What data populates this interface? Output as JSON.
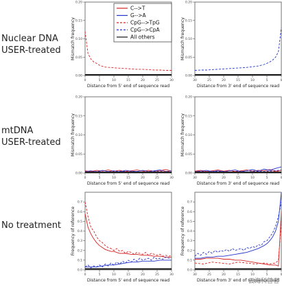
{
  "row_labels": [
    [
      "Nuclear DNA",
      "USER-treated"
    ],
    [
      "mtDNA",
      "USER-treated"
    ],
    [
      "No treatment"
    ]
  ],
  "watermark": "云海科普者",
  "legend": {
    "placement": "inside top of panel 1",
    "entries": [
      {
        "label": "C-->T",
        "color": "#d62020",
        "dash": "solid"
      },
      {
        "label": "G-->A",
        "color": "#2233cc",
        "dash": "solid"
      },
      {
        "label": "CpG-->TpG",
        "color": "#d62020",
        "dash": "dashed"
      },
      {
        "label": "CpG-->CpA",
        "color": "#2233cc",
        "dash": "dashed"
      },
      {
        "label": "All others",
        "color": "#111111",
        "dash": "solid"
      }
    ]
  },
  "chart_data": [
    {
      "type": "line",
      "xlabel": "Distance from 5' end of sequence read",
      "ylabel": "Mismatch frequency",
      "xlim": [
        0,
        30
      ],
      "ylim": [
        0,
        2.0
      ],
      "xticks": [
        0,
        5,
        10,
        15,
        20,
        25,
        30
      ],
      "yticks": [
        0.0,
        0.5,
        1.0,
        1.5,
        2.0
      ],
      "ytick_labels": [
        "0.00",
        "0.05",
        "0.10",
        "0.15",
        "0.20"
      ],
      "series": [
        {
          "key": "ct",
          "x": [
            0,
            30
          ],
          "y": [
            0.02,
            0.02
          ]
        },
        {
          "key": "ga",
          "x": [
            0,
            30
          ],
          "y": [
            0.02,
            0.02
          ]
        },
        {
          "key": "cpg_tpg",
          "x": [
            0,
            1,
            2,
            3,
            4,
            5,
            6,
            7,
            8,
            9,
            10,
            12,
            14,
            16,
            18,
            20,
            22,
            24,
            26,
            28,
            30
          ],
          "y": [
            1.2,
            0.6,
            0.45,
            0.37,
            0.33,
            0.28,
            0.25,
            0.23,
            0.22,
            0.22,
            0.21,
            0.2,
            0.19,
            0.18,
            0.17,
            0.17,
            0.16,
            0.15,
            0.15,
            0.14,
            0.14
          ]
        },
        {
          "key": "cpg_cpa",
          "x": [
            0,
            30
          ],
          "y": [
            0.02,
            0.02
          ]
        },
        {
          "key": "others",
          "x": [
            0,
            30
          ],
          "y": [
            0.02,
            0.02
          ]
        }
      ]
    },
    {
      "type": "line",
      "xlabel": "Distance from 3' end of sequence read",
      "ylabel": "Mismatch frequency",
      "xlim": [
        30,
        0
      ],
      "ylim": [
        0,
        2.0
      ],
      "xticks": [
        30,
        25,
        20,
        15,
        10,
        5,
        0
      ],
      "yticks": [
        0.0,
        0.5,
        1.0,
        1.5,
        2.0
      ],
      "ytick_labels": [
        "0.00",
        "0.05",
        "0.10",
        "0.15",
        "0.20"
      ],
      "series": [
        {
          "key": "ct",
          "x": [
            30,
            0
          ],
          "y": [
            0.02,
            0.02
          ]
        },
        {
          "key": "ga",
          "x": [
            30,
            0
          ],
          "y": [
            0.02,
            0.02
          ]
        },
        {
          "key": "cpg_tpg",
          "x": [
            30,
            0
          ],
          "y": [
            0.02,
            0.02
          ]
        },
        {
          "key": "cpg_cpa",
          "x": [
            30,
            28,
            26,
            24,
            22,
            20,
            18,
            16,
            14,
            12,
            10,
            8,
            6,
            5,
            4,
            3,
            2,
            1,
            0
          ],
          "y": [
            0.14,
            0.15,
            0.15,
            0.16,
            0.17,
            0.18,
            0.19,
            0.2,
            0.21,
            0.22,
            0.24,
            0.26,
            0.3,
            0.33,
            0.37,
            0.42,
            0.5,
            0.65,
            1.3
          ]
        },
        {
          "key": "others",
          "x": [
            30,
            0
          ],
          "y": [
            0.02,
            0.02
          ]
        }
      ]
    },
    {
      "type": "line",
      "xlabel": "Distance from 5' end of sequence read",
      "ylabel": "Mismatch frequency",
      "xlim": [
        0,
        30
      ],
      "ylim": [
        0,
        2.0
      ],
      "xticks": [
        0,
        5,
        10,
        15,
        20,
        25,
        30
      ],
      "yticks": [
        0.0,
        0.5,
        1.0,
        1.5,
        2.0
      ],
      "ytick_labels": [
        "0.00",
        "0.05",
        "0.10",
        "0.15",
        "0.20"
      ],
      "series": [
        {
          "key": "ct",
          "x": [
            0,
            2,
            4,
            6,
            8,
            10,
            12,
            14,
            16,
            18,
            20,
            22,
            24,
            26,
            28,
            30
          ],
          "y": [
            0.06,
            0.04,
            0.07,
            0.05,
            0.08,
            0.05,
            0.07,
            0.04,
            0.06,
            0.08,
            0.05,
            0.07,
            0.05,
            0.06,
            0.09,
            0.05
          ]
        },
        {
          "key": "ga",
          "x": [
            0,
            2,
            4,
            6,
            8,
            10,
            12,
            14,
            16,
            18,
            20,
            22,
            24,
            26,
            28,
            30
          ],
          "y": [
            0.04,
            0.06,
            0.03,
            0.07,
            0.04,
            0.06,
            0.03,
            0.07,
            0.05,
            0.04,
            0.07,
            0.04,
            0.06,
            0.08,
            0.04,
            0.06
          ]
        },
        {
          "key": "cpg_tpg",
          "x": [
            0,
            3,
            6,
            9,
            12,
            15,
            18,
            21,
            24,
            27,
            30
          ],
          "y": [
            0.03,
            0.05,
            0.02,
            0.04,
            0.03,
            0.05,
            0.02,
            0.04,
            0.03,
            0.05,
            0.03
          ]
        },
        {
          "key": "cpg_cpa",
          "x": [
            0,
            3,
            6,
            9,
            12,
            15,
            18,
            21,
            24,
            27,
            30
          ],
          "y": [
            0.02,
            0.04,
            0.03,
            0.02,
            0.05,
            0.03,
            0.04,
            0.02,
            0.04,
            0.03,
            0.02
          ]
        },
        {
          "key": "others",
          "x": [
            0,
            30
          ],
          "y": [
            0.02,
            0.02
          ]
        }
      ]
    },
    {
      "type": "line",
      "xlabel": "Distance from 3' end of sequence read",
      "ylabel": "Mismatch frequency",
      "xlim": [
        30,
        0
      ],
      "ylim": [
        0,
        2.0
      ],
      "xticks": [
        30,
        25,
        20,
        15,
        10,
        5,
        0
      ],
      "yticks": [
        0.0,
        0.5,
        1.0,
        1.5,
        2.0
      ],
      "ytick_labels": [
        "0.00",
        "0.05",
        "0.10",
        "0.15",
        "0.20"
      ],
      "series": [
        {
          "key": "ct",
          "x": [
            30,
            28,
            26,
            24,
            22,
            20,
            18,
            16,
            14,
            12,
            10,
            8,
            6,
            4,
            2,
            0
          ],
          "y": [
            0.05,
            0.07,
            0.04,
            0.06,
            0.08,
            0.05,
            0.07,
            0.04,
            0.06,
            0.08,
            0.05,
            0.07,
            0.06,
            0.09,
            0.05,
            0.07
          ]
        },
        {
          "key": "ga",
          "x": [
            30,
            28,
            26,
            24,
            22,
            20,
            18,
            16,
            14,
            12,
            10,
            8,
            6,
            4,
            2,
            0
          ],
          "y": [
            0.04,
            0.05,
            0.07,
            0.04,
            0.06,
            0.03,
            0.06,
            0.08,
            0.04,
            0.06,
            0.09,
            0.05,
            0.1,
            0.07,
            0.12,
            0.16
          ]
        },
        {
          "key": "cpg_tpg",
          "x": [
            30,
            27,
            24,
            21,
            18,
            15,
            12,
            9,
            6,
            3,
            0
          ],
          "y": [
            0.03,
            0.05,
            0.02,
            0.04,
            0.03,
            0.05,
            0.02,
            0.04,
            0.03,
            0.05,
            0.03
          ]
        },
        {
          "key": "cpg_cpa",
          "x": [
            30,
            27,
            24,
            21,
            18,
            15,
            12,
            9,
            6,
            3,
            0
          ],
          "y": [
            0.02,
            0.04,
            0.03,
            0.05,
            0.02,
            0.04,
            0.03,
            0.05,
            0.04,
            0.06,
            0.08
          ]
        },
        {
          "key": "others",
          "x": [
            30,
            0
          ],
          "y": [
            0.02,
            0.02
          ]
        }
      ]
    },
    {
      "type": "line",
      "xlabel": "Distance from 5' end of sequence read",
      "ylabel": "Frequency of reference",
      "xlim": [
        0,
        30
      ],
      "ylim": [
        0,
        0.8
      ],
      "xticks": [
        0,
        5,
        10,
        15,
        20,
        25,
        30
      ],
      "yticks": [
        0.0,
        0.1,
        0.2,
        0.3,
        0.4,
        0.5,
        0.6,
        0.7
      ],
      "ytick_labels": [
        "0.0",
        "0.1",
        "0.2",
        "0.3",
        "0.4",
        "0.5",
        "0.6",
        "0.7"
      ],
      "series": [
        {
          "key": "ct",
          "x": [
            0,
            1,
            2,
            3,
            4,
            5,
            6,
            7,
            8,
            9,
            10,
            12,
            14,
            16,
            18,
            20,
            22,
            24,
            26,
            28,
            30
          ],
          "y": [
            0.58,
            0.44,
            0.37,
            0.32,
            0.28,
            0.25,
            0.23,
            0.21,
            0.2,
            0.19,
            0.19,
            0.17,
            0.17,
            0.16,
            0.16,
            0.15,
            0.15,
            0.14,
            0.14,
            0.13,
            0.13
          ]
        },
        {
          "key": "ga",
          "x": [
            0,
            2,
            4,
            6,
            8,
            10,
            12,
            14,
            16,
            18,
            20,
            22,
            24,
            26,
            28,
            30
          ],
          "y": [
            0.03,
            0.03,
            0.03,
            0.04,
            0.05,
            0.05,
            0.06,
            0.07,
            0.08,
            0.08,
            0.09,
            0.09,
            0.09,
            0.1,
            0.1,
            0.1
          ]
        },
        {
          "key": "cpg_tpg",
          "x": [
            0,
            1,
            2,
            3,
            4,
            5,
            6,
            7,
            8,
            9,
            10,
            11,
            12,
            13,
            14,
            15,
            16,
            17,
            18,
            19,
            20,
            21,
            22,
            23,
            24,
            25,
            26,
            27,
            28,
            29,
            30
          ],
          "y": [
            0.7,
            0.55,
            0.44,
            0.4,
            0.34,
            0.3,
            0.28,
            0.25,
            0.23,
            0.22,
            0.2,
            0.22,
            0.19,
            0.2,
            0.17,
            0.19,
            0.18,
            0.16,
            0.18,
            0.17,
            0.16,
            0.18,
            0.15,
            0.17,
            0.16,
            0.15,
            0.16,
            0.14,
            0.15,
            0.14,
            0.15
          ]
        },
        {
          "key": "cpg_cpa",
          "x": [
            0,
            1,
            2,
            3,
            4,
            5,
            6,
            7,
            8,
            9,
            10,
            11,
            12,
            13,
            14,
            15,
            16,
            17,
            18,
            19,
            20,
            21,
            22,
            23,
            24,
            25,
            26,
            27,
            28,
            29,
            30
          ],
          "y": [
            0.03,
            0.05,
            0.02,
            0.04,
            0.03,
            0.05,
            0.03,
            0.06,
            0.04,
            0.07,
            0.05,
            0.08,
            0.06,
            0.09,
            0.07,
            0.1,
            0.08,
            0.11,
            0.09,
            0.12,
            0.1,
            0.11,
            0.12,
            0.1,
            0.13,
            0.11,
            0.12,
            0.11,
            0.13,
            0.12,
            0.12
          ]
        },
        {
          "key": "others",
          "x": [
            0,
            30
          ],
          "y": [
            0.01,
            0.01
          ]
        }
      ]
    },
    {
      "type": "line",
      "xlabel": "Distance from 3' end of sequence read",
      "ylabel": "Frequency of reference",
      "xlim": [
        30,
        0
      ],
      "ylim": [
        0,
        0.8
      ],
      "xticks": [
        30,
        25,
        20,
        15,
        10,
        5,
        0
      ],
      "yticks": [
        0.0,
        0.1,
        0.2,
        0.3,
        0.4,
        0.5,
        0.6,
        0.7
      ],
      "ytick_labels": [
        "0.0",
        "0.1",
        "0.2",
        "0.3",
        "0.4",
        "0.5",
        "0.6",
        "0.7"
      ],
      "series": [
        {
          "key": "ct",
          "x": [
            30,
            28,
            26,
            24,
            22,
            20,
            18,
            16,
            14,
            12,
            10,
            8,
            6,
            4,
            3,
            2,
            1,
            0
          ],
          "y": [
            0.11,
            0.11,
            0.12,
            0.12,
            0.12,
            0.11,
            0.11,
            0.1,
            0.1,
            0.09,
            0.08,
            0.07,
            0.06,
            0.05,
            0.05,
            0.05,
            0.04,
            0.6
          ]
        },
        {
          "key": "ga",
          "x": [
            30,
            28,
            26,
            24,
            22,
            20,
            18,
            16,
            14,
            12,
            10,
            8,
            6,
            5,
            4,
            3,
            2,
            1,
            0
          ],
          "y": [
            0.12,
            0.12,
            0.13,
            0.13,
            0.14,
            0.14,
            0.15,
            0.16,
            0.17,
            0.18,
            0.2,
            0.22,
            0.25,
            0.27,
            0.3,
            0.34,
            0.4,
            0.5,
            0.8
          ]
        },
        {
          "key": "cpg_tpg",
          "x": [
            30,
            27,
            24,
            21,
            18,
            15,
            12,
            9,
            6,
            4,
            2,
            1,
            0
          ],
          "y": [
            0.07,
            0.06,
            0.08,
            0.07,
            0.06,
            0.08,
            0.07,
            0.06,
            0.07,
            0.06,
            0.07,
            0.1,
            0.5
          ]
        },
        {
          "key": "cpg_cpa",
          "x": [
            30,
            29,
            28,
            27,
            26,
            25,
            24,
            23,
            22,
            21,
            20,
            19,
            18,
            17,
            16,
            15,
            14,
            13,
            12,
            11,
            10,
            9,
            8,
            7,
            6,
            5,
            4,
            3,
            2,
            1,
            0
          ],
          "y": [
            0.14,
            0.17,
            0.15,
            0.18,
            0.16,
            0.19,
            0.17,
            0.2,
            0.18,
            0.2,
            0.19,
            0.21,
            0.19,
            0.22,
            0.2,
            0.21,
            0.22,
            0.2,
            0.23,
            0.22,
            0.24,
            0.23,
            0.26,
            0.25,
            0.29,
            0.3,
            0.34,
            0.38,
            0.45,
            0.55,
            0.7
          ]
        },
        {
          "key": "others",
          "x": [
            30,
            0
          ],
          "y": [
            0.01,
            0.01
          ]
        }
      ]
    }
  ]
}
